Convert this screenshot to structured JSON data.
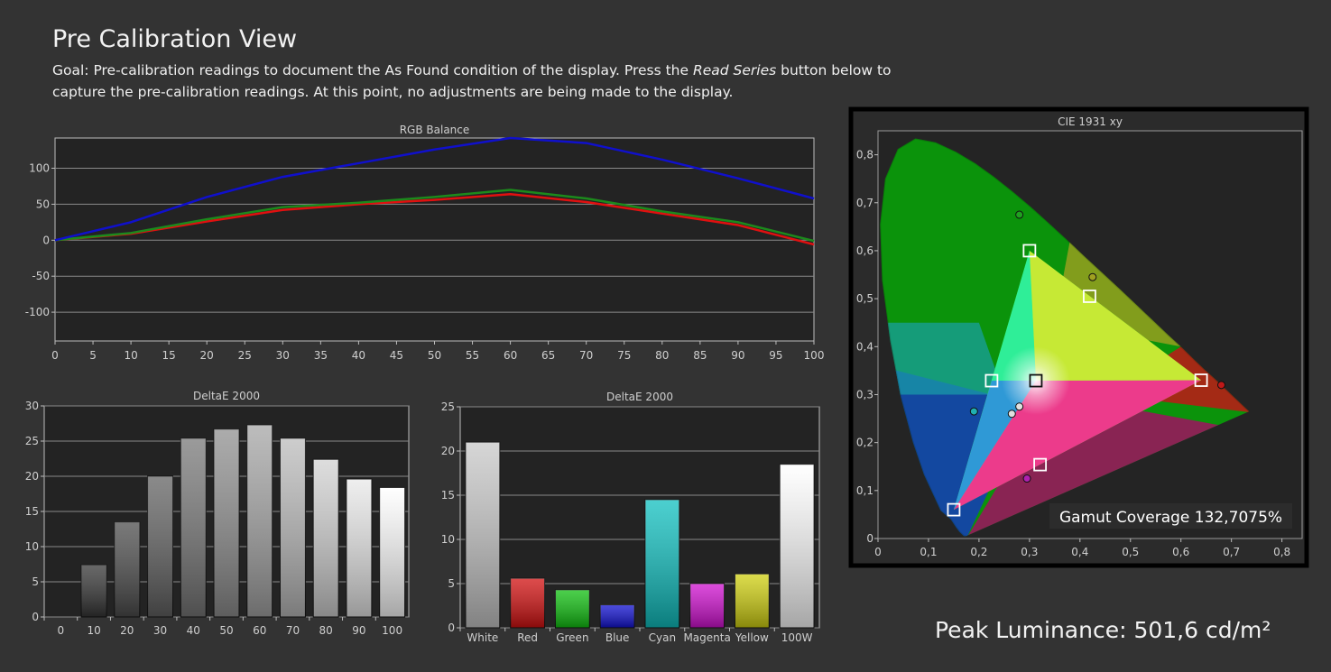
{
  "header": {
    "title": "Pre Calibration View",
    "goal_prefix": "Goal: Pre-calibration readings to document the As Found condition of the display. Press the ",
    "goal_emphasis": "Read Series",
    "goal_suffix": " button below to capture the pre-calibration readings. At this point, no adjustments are being made to the display."
  },
  "peak_luminance": "Peak Luminance: 501,6 cd/m²",
  "chart_data": [
    {
      "type": "line",
      "title": "RGB Balance",
      "x": [
        0,
        10,
        20,
        30,
        40,
        50,
        60,
        70,
        80,
        90,
        100
      ],
      "xticks": [
        "0",
        "5",
        "10",
        "15",
        "20",
        "25",
        "30",
        "35",
        "40",
        "45",
        "50",
        "55",
        "60",
        "65",
        "70",
        "75",
        "80",
        "85",
        "90",
        "95",
        "100"
      ],
      "yticks": [
        "100",
        "50",
        "0",
        "-50",
        "-100"
      ],
      "xlim": [
        0,
        100
      ],
      "ylim": [
        -140,
        142
      ],
      "grid": true,
      "series": [
        {
          "color": "#e01010",
          "values": [
            0,
            9,
            26,
            42,
            50,
            56,
            64,
            53,
            37,
            21,
            -6
          ]
        },
        {
          "color": "#1c8a1c",
          "values": [
            0,
            10,
            29,
            46,
            52,
            60,
            70,
            58,
            40,
            25,
            -1
          ]
        },
        {
          "color": "#1010cc",
          "values": [
            0,
            25,
            60,
            88,
            107,
            126,
            142,
            135,
            112,
            86,
            58
          ]
        }
      ]
    },
    {
      "type": "bar",
      "title": "DeltaE 2000",
      "categories": [
        "0",
        "10",
        "20",
        "30",
        "40",
        "50",
        "60",
        "70",
        "80",
        "90",
        "100"
      ],
      "values": [
        0,
        7.4,
        13.5,
        20.0,
        25.4,
        26.7,
        27.3,
        25.4,
        22.4,
        19.6,
        18.4
      ],
      "yticks": [
        "30",
        "25",
        "20",
        "15",
        "10",
        "5",
        "0"
      ],
      "ylim": [
        0,
        30
      ]
    },
    {
      "type": "bar",
      "title": "DeltaE 2000",
      "categories": [
        "White",
        "Red",
        "Green",
        "Blue",
        "Cyan",
        "Magenta",
        "Yellow",
        "100W"
      ],
      "values": [
        21.0,
        5.6,
        4.3,
        2.6,
        14.5,
        5.0,
        6.1,
        18.5
      ],
      "colors": [
        "#c8c8c8",
        "#d21010",
        "#10c010",
        "#1010d0",
        "#10c0c0",
        "#d010d0",
        "#d0d010",
        "#ffffff"
      ],
      "yticks": [
        "25",
        "20",
        "15",
        "10",
        "5",
        "0"
      ],
      "ylim": [
        0,
        25
      ]
    },
    {
      "type": "scatter",
      "title": "CIE 1931 xy",
      "xticks": [
        "0",
        "0,1",
        "0,2",
        "0,3",
        "0,4",
        "0,5",
        "0,6",
        "0,7",
        "0,8"
      ],
      "yticks": [
        "0,8",
        "0,7",
        "0,6",
        "0,5",
        "0,4",
        "0,3",
        "0,2",
        "0,1",
        "0"
      ],
      "xlim": [
        0,
        0.84
      ],
      "ylim": [
        0,
        0.85
      ],
      "gamut_coverage": "Gamut Coverage 132,7075%",
      "target_gamut": [
        [
          0.64,
          0.33
        ],
        [
          0.3,
          0.6
        ],
        [
          0.15,
          0.06
        ]
      ],
      "measured_gamut": [
        [
          0.74,
          0.265
        ],
        [
          0.1,
          0.835
        ],
        [
          0.11,
          0.0
        ]
      ],
      "targets": [
        [
          0.64,
          0.33
        ],
        [
          0.3,
          0.6
        ],
        [
          0.15,
          0.06
        ],
        [
          0.225,
          0.329
        ],
        [
          0.321,
          0.154
        ],
        [
          0.419,
          0.505
        ],
        [
          0.3127,
          0.329
        ]
      ],
      "measured": [
        {
          "x": 0.68,
          "y": 0.32,
          "color": "#c01818"
        },
        {
          "x": 0.28,
          "y": 0.675,
          "color": "#20a020"
        },
        {
          "x": 0.425,
          "y": 0.545,
          "color": "#a0a020"
        },
        {
          "x": 0.19,
          "y": 0.265,
          "color": "#20b0b0"
        },
        {
          "x": 0.295,
          "y": 0.125,
          "color": "#b020b0"
        },
        {
          "x": 0.28,
          "y": 0.275,
          "color": "#e0e0e0"
        },
        {
          "x": 0.265,
          "y": 0.26,
          "color": "#e0e0e0"
        }
      ]
    }
  ]
}
